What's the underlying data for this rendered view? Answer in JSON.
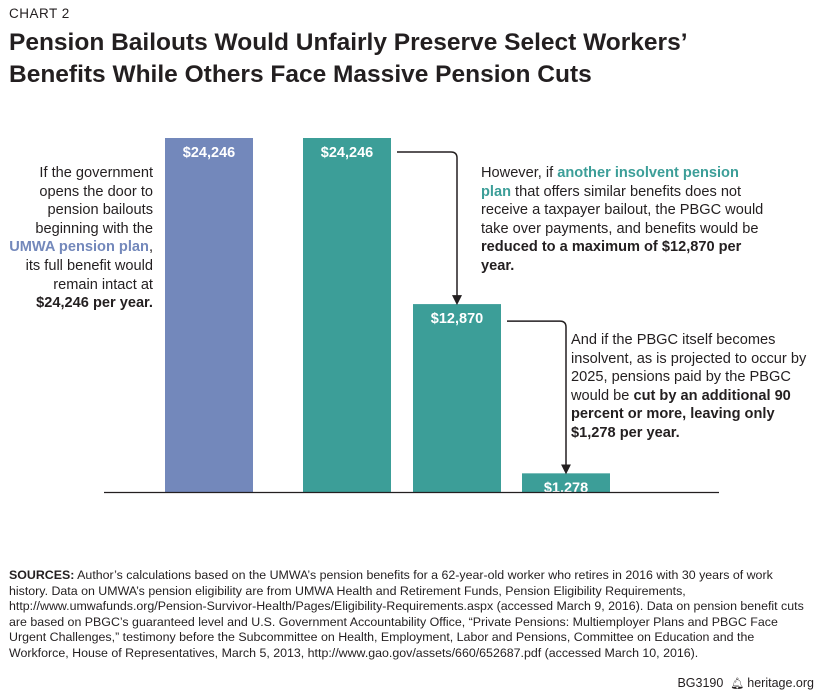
{
  "chart_label": "CHART 2",
  "title_line1": "Pension Bailouts Would Unfairly Preserve Select Workers’",
  "title_line2": "Benefits While Others Face Massive Pension Cuts",
  "colors": {
    "umwa": "#7388bb",
    "teal": "#3c9e98",
    "axis": "#231f20",
    "text": "#231f20"
  },
  "chart_data": {
    "type": "bar",
    "categories": [
      "",
      "",
      "",
      ""
    ],
    "values": [
      24246,
      24246,
      12870,
      1278
    ],
    "value_labels": [
      "$24,246",
      "$24,246",
      "$12,870",
      "$1,278"
    ],
    "bar_colors": [
      "#7388bb",
      "#3c9e98",
      "#3c9e98",
      "#3c9e98"
    ],
    "ylim": [
      0,
      24246
    ],
    "xlabel": "",
    "ylabel": "",
    "grid": false
  },
  "notes": {
    "left": {
      "t1": "If the government opens the door to pension bailouts beginning with the ",
      "h1": "UMWA pension plan",
      "t2": ", its full benefit would remain intact at ",
      "b1": "$24,246 per year."
    },
    "mid": {
      "t1": "However, if ",
      "h1": "another insolvent pension plan",
      "t2": " that offers similar benefits does not receive a taxpayer bailout, the PBGC would take over payments, and benefits would be ",
      "b1": "reduced to a maximum of $12,870 per year."
    },
    "right": {
      "t1": "And if the PBGC itself becomes insolvent, as is projected to occur by 2025, pensions paid by the PBGC would be ",
      "b1": "cut by an additional 90 percent or more, leaving only $1,278 per year."
    }
  },
  "sources": {
    "label": "SOURCES:",
    "text": " Author’s calculations based on the UMWA’s pension benefits for a 62-year-old worker who retires in 2016 with 30 years of work history. Data on UMWA’s pension eligibility are from UMWA Health and Retirement Funds, Pension Eligibility Requirements, http://www.umwafunds.org/Pension-Survivor-Health/Pages/Eligibility-Requirements.aspx (accessed March 9, 2016). Data on pension benefit cuts are based on PBGC’s guaranteed level and U.S. Government Accountability Office, “Private Pensions: Multiemployer Plans and PBGC Face Urgent Challenges,” testimony before the Subcommittee on Health, Employment, Labor and Pensions, Committee on Education and the Workforce, House of Representatives, March 5, 2013, http://www.gao.gov/assets/660/652687.pdf (accessed March 10, 2016)."
  },
  "footer": {
    "code": "BG3190",
    "bell_icon": "liberty-bell-icon",
    "site": "heritage.org"
  }
}
